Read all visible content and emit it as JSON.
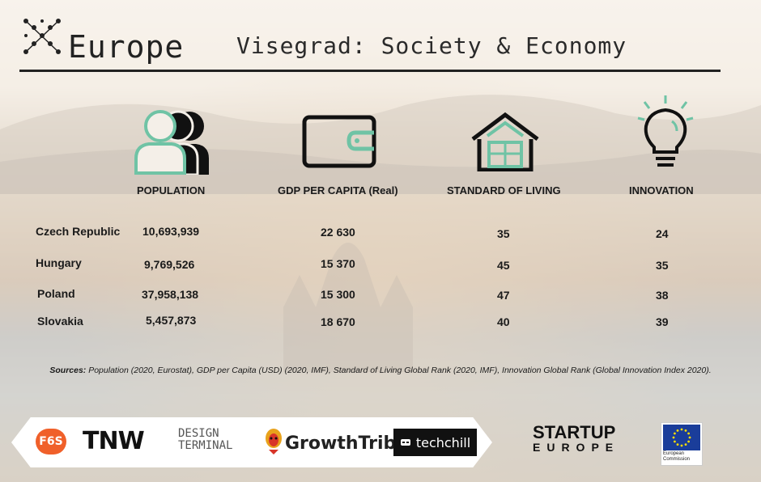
{
  "header": {
    "brand": "Europe",
    "title": "Visegrad: Society & Economy"
  },
  "columns": [
    {
      "label": "POPULATION",
      "icon": "population-icon"
    },
    {
      "label": "GDP PER CAPITA (Real)",
      "icon": "wallet-icon"
    },
    {
      "label": "STANDARD OF LIVING",
      "icon": "house-icon"
    },
    {
      "label": "INNOVATION",
      "icon": "lightbulb-icon"
    }
  ],
  "rows": [
    {
      "country": "Czech Republic",
      "population": "10,693,939",
      "gdp": "22 630",
      "living": "35",
      "innovation": "24"
    },
    {
      "country": "Hungary",
      "population": "9,769,526",
      "gdp": "15 370",
      "living": "45",
      "innovation": "35"
    },
    {
      "country": "Poland",
      "population": "37,958,138",
      "gdp": "15 300",
      "living": "47",
      "innovation": "38"
    },
    {
      "country": "Slovakia",
      "population": "5,457,873",
      "gdp": "18 670",
      "living": "40",
      "innovation": "39"
    }
  ],
  "sources": {
    "label": "Sources:",
    "text": " Population (2020, Eurostat), GDP per Capita (USD) (2020, IMF), Standard of Living Global Rank (2020, IMF), Innovation Global Rank (Global Innovation Index 2020)."
  },
  "partners": {
    "f6s": "F6S",
    "tnw": "TNW",
    "design_terminal": "DESIGN TERMINAL",
    "growthtribe": "GrowthTribe",
    "techchill": "techchill"
  },
  "startup_europe": {
    "line1": "STARTUP",
    "line2": "EUROPE"
  },
  "eu": {
    "label": "European Commission"
  },
  "colors": {
    "accent": "#6fc3a5",
    "text": "#1a1a1a"
  }
}
